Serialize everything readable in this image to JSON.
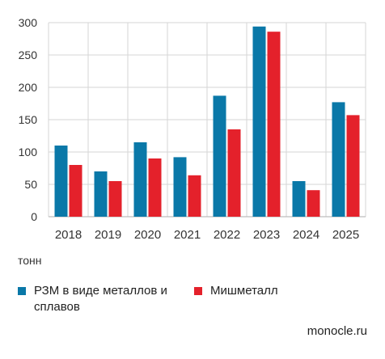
{
  "chart_data": {
    "type": "bar",
    "categories": [
      "2018",
      "2019",
      "2020",
      "2021",
      "2022",
      "2023",
      "2024",
      "2025"
    ],
    "series": [
      {
        "name": "РЗМ в виде металлов и сплавов",
        "values": [
          110,
          70,
          115,
          92,
          187,
          294,
          55,
          177
        ],
        "color": "#0a78a8"
      },
      {
        "name": "Мишметалл",
        "values": [
          80,
          55,
          90,
          64,
          135,
          286,
          41,
          157
        ],
        "color": "#e4212b"
      }
    ],
    "y_ticks": [
      "0",
      "50",
      "100",
      "150",
      "200",
      "250",
      "300"
    ],
    "ylim": [
      0,
      300
    ],
    "title": "",
    "xlabel": "",
    "ylabel": "тонн",
    "grid": true,
    "legend_position": "bottom-left"
  },
  "legend": {
    "series1_label": "РЗМ в виде металлов и сплавов",
    "series2_label": "Мишметалл"
  },
  "unit_label": "тонн",
  "source": "monocle.ru",
  "colors": {
    "series1": "#0a78a8",
    "series2": "#e4212b",
    "grid": "#d6d6d6",
    "axis": "#bdbdbd"
  }
}
